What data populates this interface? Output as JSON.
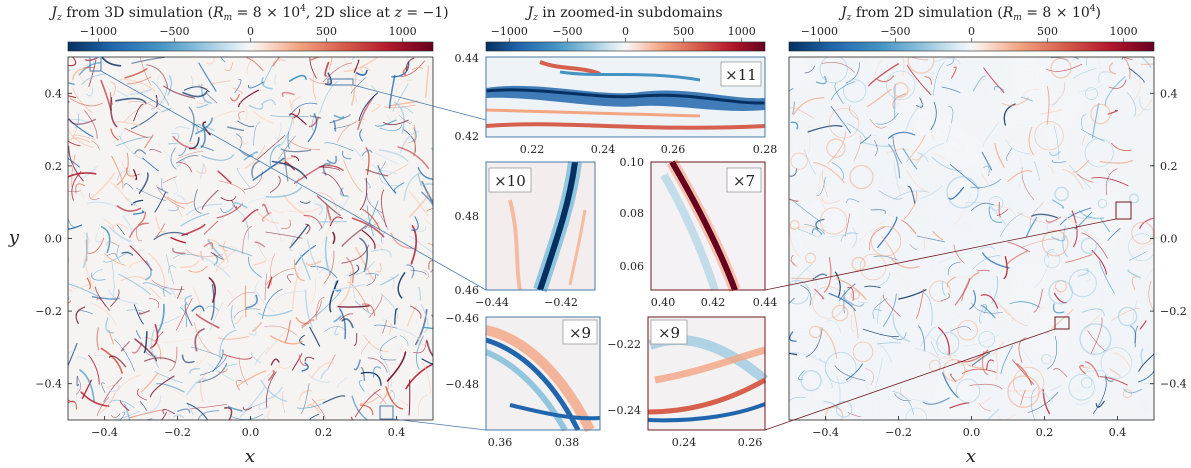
{
  "figure": {
    "panels": {
      "left": {
        "title": "J_z from 3D simulation (R_m = 8 × 10^4, 2D slice at z = −1)",
        "title_parts": {
          "J": "J",
          "z": "z",
          "mid": " from 3D simulation (",
          "R": "R",
          "m": "m",
          "eq": " = 8 × 10",
          "sup": "4",
          "slice": ", 2D slice at ",
          "zvar": "z",
          "tail": " = −1)"
        },
        "colorbar_ticks": [
          "−1000",
          "−500",
          "0",
          "500",
          "1000"
        ],
        "x_ticks": [
          "−0.4",
          "−0.2",
          "0.0",
          "0.2",
          "0.4"
        ],
        "y_ticks": [
          "0.4",
          "0.2",
          "0.0",
          "−0.2",
          "−0.4"
        ],
        "xlabel": "x",
        "ylabel": "y"
      },
      "middle": {
        "title": "J_z in zoomed-in subdomains",
        "title_parts": {
          "J": "J",
          "z": "z",
          "rest": " in zoomed-in subdomains"
        },
        "colorbar_ticks": [
          "−1000",
          "−500",
          "0",
          "500",
          "1000"
        ]
      },
      "right": {
        "title": "J_z from 2D simulation (R_m = 8 × 10^4)",
        "title_parts": {
          "J": "J",
          "z": "z",
          "mid": " from 2D simulation (",
          "R": "R",
          "m": "m",
          "eq": " = 8 × 10",
          "sup": "4",
          "tail": ")"
        },
        "colorbar_ticks": [
          "−1000",
          "−500",
          "0",
          "500",
          "1000"
        ],
        "x_ticks": [
          "−0.4",
          "−0.2",
          "0.0",
          "0.2",
          "0.4"
        ],
        "y_ticks": [
          "0.4",
          "0.2",
          "0.0",
          "−0.2",
          "−0.4"
        ],
        "xlabel": "x"
      }
    },
    "insets": {
      "top": {
        "zoom": "×11",
        "x_ticks": [
          "0.22",
          "0.24",
          "0.26",
          "0.28"
        ],
        "y_ticks": [
          "0.44",
          "0.42"
        ]
      },
      "mid_left": {
        "zoom": "×10",
        "x_ticks": [
          "−0.44",
          "−0.42"
        ],
        "y_ticks": [
          "0.48",
          "0.46"
        ]
      },
      "mid_right": {
        "zoom": "×7",
        "x_ticks": [
          "0.40",
          "0.42",
          "0.44"
        ],
        "y_ticks": [
          "0.10",
          "0.08",
          "0.06"
        ]
      },
      "bot_left": {
        "zoom": "×9",
        "x_ticks": [
          "0.36",
          "0.38"
        ],
        "y_ticks": [
          "−0.46",
          "−0.48"
        ]
      },
      "bot_right": {
        "zoom": "×9",
        "x_ticks": [
          "0.24",
          "0.26"
        ],
        "y_ticks": [
          "−0.22",
          "−0.24"
        ]
      }
    },
    "colors": {
      "blue_frame": "#4a78a8",
      "red_frame": "#6e1a1f",
      "cmap_neg": "#053061",
      "cmap_pos": "#67001f"
    }
  }
}
